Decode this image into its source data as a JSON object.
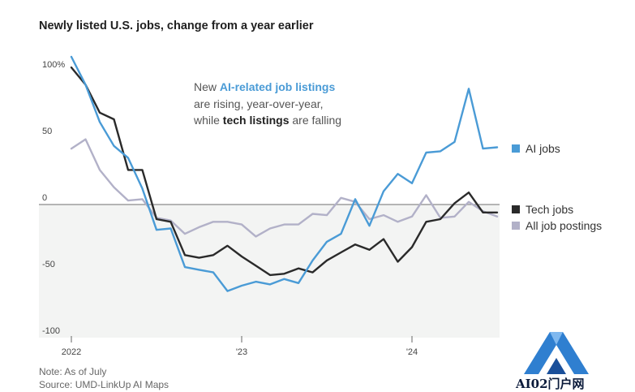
{
  "title": "Newly listed U.S. jobs, change from a year earlier",
  "annotation": {
    "line1_pre": "New ",
    "line1_bold": "AI-related job listings",
    "line2": "are rising, year-over-year,",
    "line3_pre": "while ",
    "line3_bold": "tech listings",
    "line3_post": " are falling"
  },
  "notes": {
    "note": "Note: As of July",
    "source": "Source: UMD-LinkUp AI Maps"
  },
  "watermark": {
    "text": "AI02门户网",
    "icon": "ai02-logo-icon"
  },
  "colors": {
    "ai": "#4a9bd6",
    "tech": "#2a2a2a",
    "all": "#b2b1c8",
    "negative_shade": "#f3f4f3",
    "zero_line": "#8a8a8a"
  },
  "chart_data": {
    "type": "line",
    "title": "Newly listed U.S. jobs, change from a year earlier",
    "xlabel": "",
    "ylabel": "",
    "x_tick_labels": [
      "2022",
      "'23",
      "'24"
    ],
    "y_tick_labels": [
      "100%",
      "50",
      "0",
      "-50",
      "-100"
    ],
    "y_ticks": [
      100,
      50,
      0,
      -50,
      -100
    ],
    "ylim": [
      -100,
      110
    ],
    "grid": false,
    "shaded_region": "below zero",
    "legend_placement": "right",
    "x": [
      "2022-01",
      "2022-02",
      "2022-03",
      "2022-04",
      "2022-05",
      "2022-06",
      "2022-07",
      "2022-08",
      "2022-09",
      "2022-10",
      "2022-11",
      "2022-12",
      "2023-01",
      "2023-02",
      "2023-03",
      "2023-04",
      "2023-05",
      "2023-06",
      "2023-07",
      "2023-08",
      "2023-09",
      "2023-10",
      "2023-11",
      "2023-12",
      "2024-01",
      "2024-02",
      "2024-03",
      "2024-04",
      "2024-05",
      "2024-06",
      "2024-07"
    ],
    "series": [
      {
        "name": "AI jobs",
        "key": "ai",
        "values": [
          111,
          90,
          62,
          44,
          35,
          12,
          -19,
          -18,
          -47,
          -49,
          -51,
          -65,
          -61,
          -58,
          -60,
          -56,
          -59,
          -42,
          -28,
          -22,
          4,
          -16,
          10,
          23,
          16,
          39,
          40,
          47,
          87,
          42,
          43
        ]
      },
      {
        "name": "Tech jobs",
        "key": "tech",
        "values": [
          103,
          90,
          69,
          64,
          26,
          26,
          -11,
          -13,
          -38,
          -40,
          -38,
          -31,
          -39,
          -46,
          -53,
          -52,
          -48,
          -51,
          -42,
          -36,
          -30,
          -34,
          -26,
          -43,
          -32,
          -13,
          -11,
          1,
          9,
          -6,
          -6
        ]
      },
      {
        "name": "All job postings",
        "key": "all",
        "values": [
          42,
          49,
          26,
          13,
          3,
          4,
          -10,
          -12,
          -22,
          -17,
          -13,
          -13,
          -15,
          -24,
          -18,
          -15,
          -15,
          -7,
          -8,
          5,
          2,
          -11,
          -8,
          -13,
          -9,
          7,
          -10,
          -9,
          2,
          -5,
          -9
        ]
      }
    ]
  }
}
